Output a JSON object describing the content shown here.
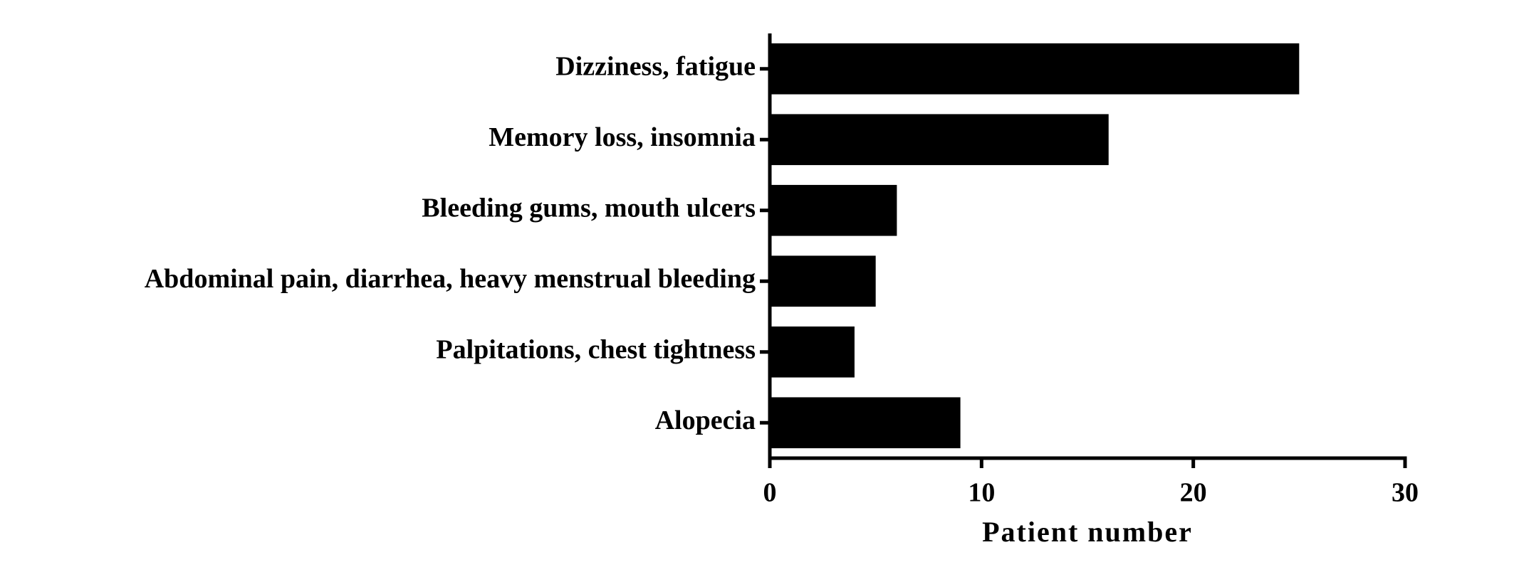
{
  "chart_data": {
    "type": "bar",
    "orientation": "horizontal",
    "x_label": "Patient number",
    "categories": [
      "Dizziness, fatigue",
      "Memory loss, insomnia",
      "Bleeding gums, mouth ulcers",
      "Abdominal pain, diarrhea, heavy menstrual bleeding",
      "Palpitations, chest tightness",
      "Alopecia"
    ],
    "values": [
      25,
      16,
      6,
      5,
      4,
      9
    ],
    "color": "#000000",
    "xlim": [
      0,
      30
    ],
    "xticks": [
      0,
      10,
      20,
      30
    ],
    "grid": false
  }
}
